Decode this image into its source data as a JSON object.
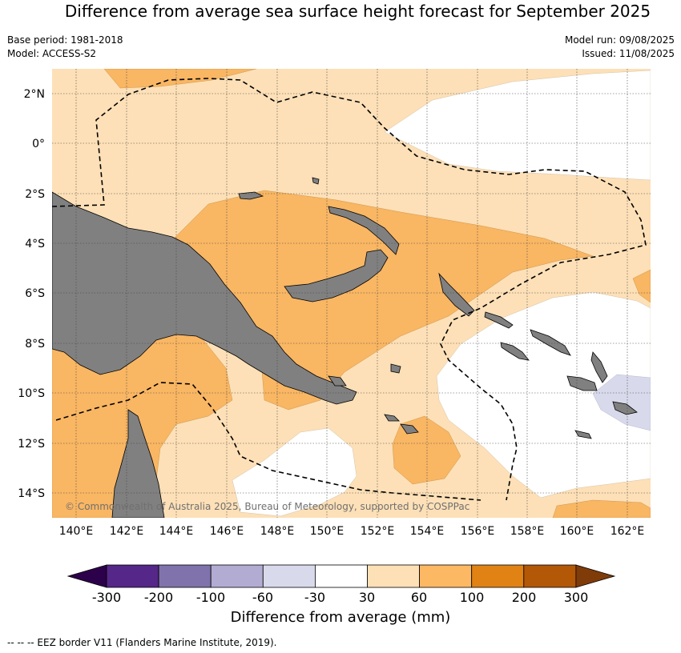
{
  "title": "Difference from average sea surface height forecast for September 2025",
  "meta": {
    "base_period": "Base period: 1981-2018",
    "model": "Model: ACCESS-S2",
    "model_run": "Model run: 09/08/2025",
    "issued": "Issued: 11/08/2025"
  },
  "map": {
    "lon_ticks": [
      "140°E",
      "142°E",
      "144°E",
      "146°E",
      "148°E",
      "150°E",
      "152°E",
      "154°E",
      "156°E",
      "158°E",
      "160°E",
      "162°E"
    ],
    "lat_ticks": [
      "2°N",
      "0°",
      "2°S",
      "4°S",
      "6°S",
      "8°S",
      "10°S",
      "12°S",
      "14°S"
    ],
    "copyright": "© Commonwealth of Australia 2025, Bureau of Meteorology, supported by COSPPac",
    "colors": {
      "land": "#808080",
      "band_30_60": "#fde0b7",
      "band_60_100": "#f9b663",
      "band_-60_-30": "#d8daeb",
      "band_-30_30": "#ffffff"
    }
  },
  "colorbar": {
    "labels": [
      "-300",
      "-200",
      "-100",
      "-60",
      "-30",
      "30",
      "60",
      "100",
      "200",
      "300"
    ],
    "colors": [
      "#2d004b",
      "#542788",
      "#8073ac",
      "#b2abd2",
      "#d8daeb",
      "#ffffff",
      "#fee0b6",
      "#fdb863",
      "#e08214",
      "#b35806",
      "#7f3b08"
    ],
    "title": "Difference from average (mm)"
  },
  "footer": "--  --  -- EEZ border V11 (Flanders Marine Institute, 2019)."
}
